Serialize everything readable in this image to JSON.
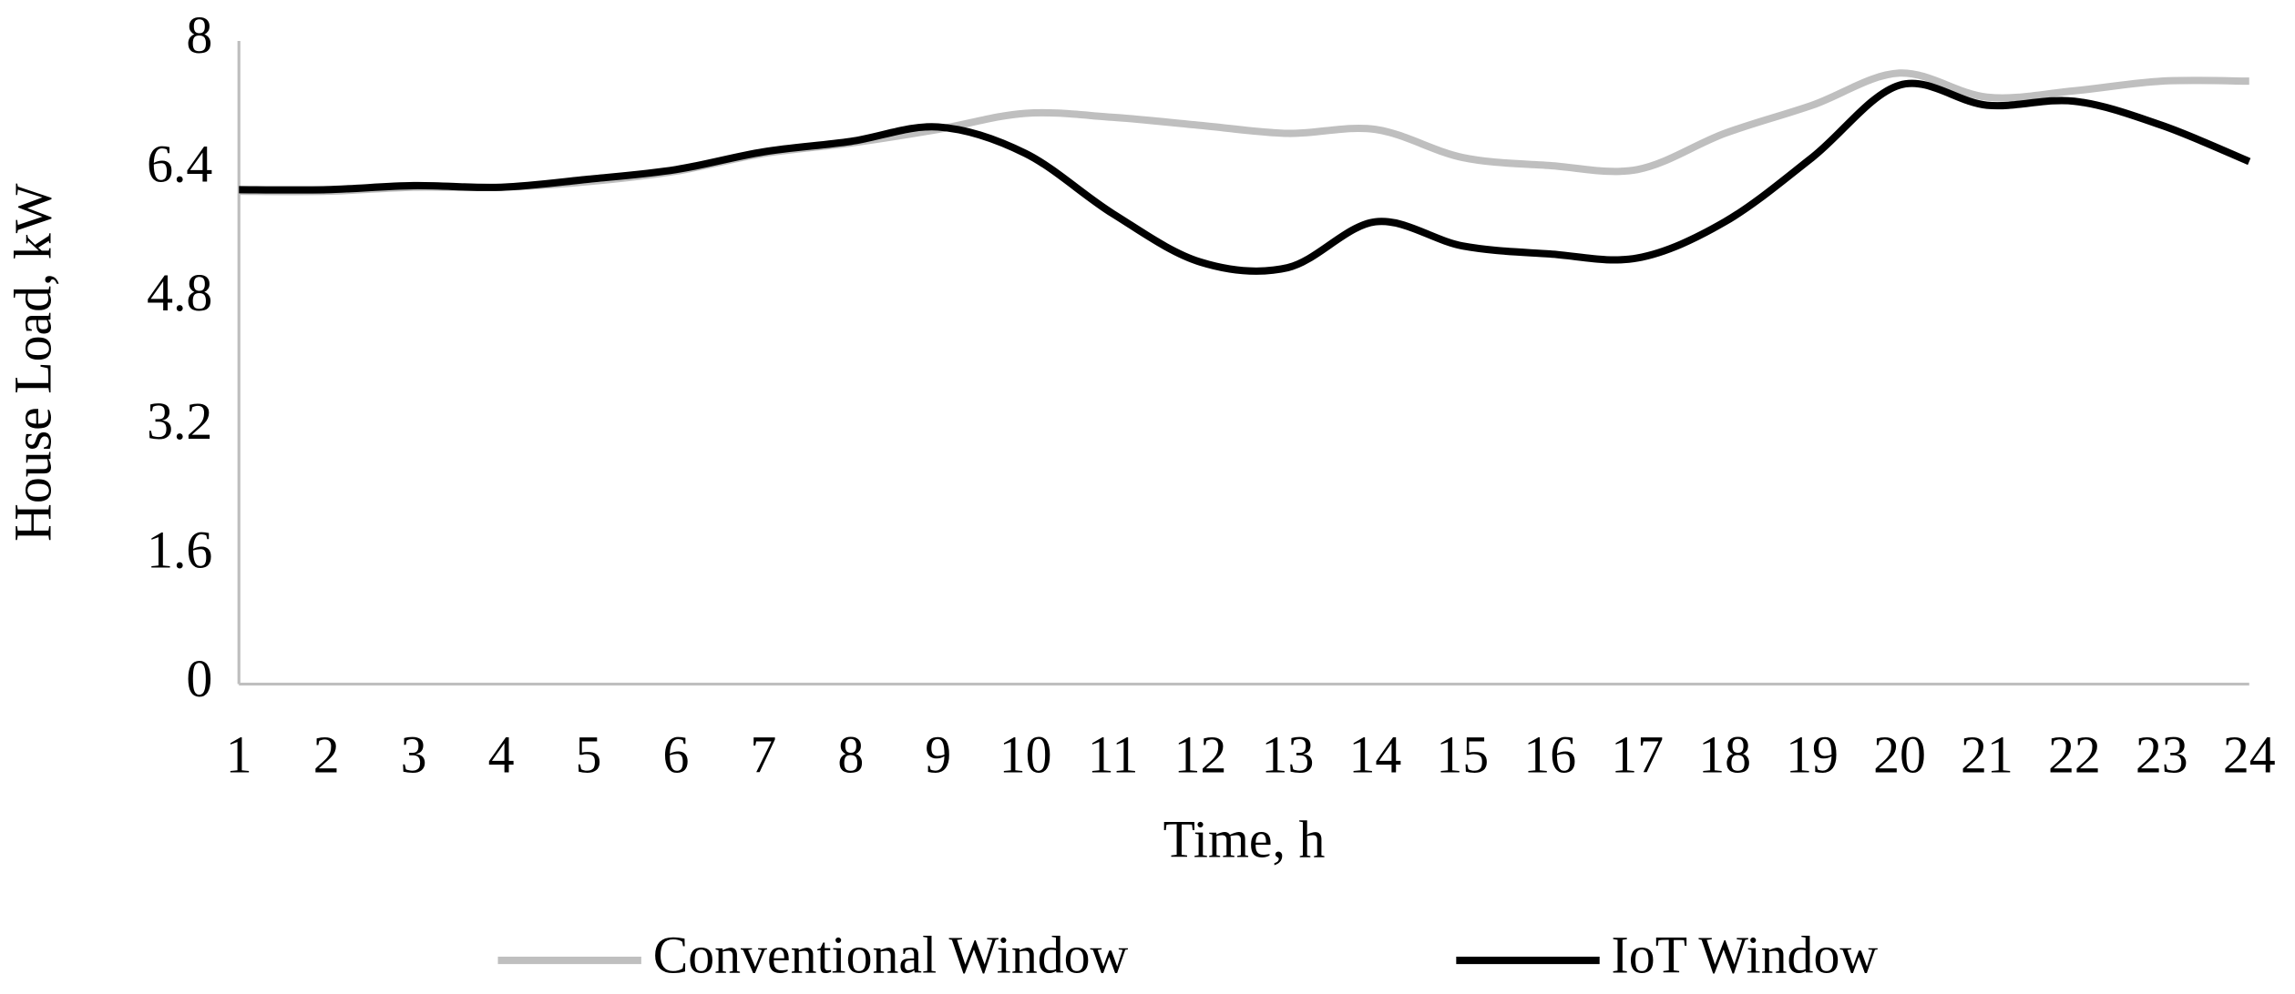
{
  "chart_data": {
    "type": "line",
    "x_label": "Time, h",
    "y_label": "House Load, kW",
    "x": [
      1,
      2,
      3,
      4,
      5,
      6,
      7,
      8,
      9,
      10,
      11,
      12,
      13,
      14,
      15,
      16,
      17,
      18,
      19,
      20,
      21,
      22,
      23,
      24
    ],
    "xlim": [
      1,
      24
    ],
    "xticks": [
      1,
      2,
      3,
      4,
      5,
      6,
      7,
      8,
      9,
      10,
      11,
      12,
      13,
      14,
      15,
      16,
      17,
      18,
      19,
      20,
      21,
      22,
      23,
      24
    ],
    "ylim": [
      0,
      8
    ],
    "yticks": [
      0,
      1.6,
      3.2,
      4.8,
      6.4,
      8
    ],
    "grid": false,
    "legend": "bottom",
    "series": [
      {
        "name": "Conventional Window",
        "color": "#bfbfbf",
        "values": [
          6.13,
          6.13,
          6.18,
          6.18,
          6.25,
          6.38,
          6.6,
          6.73,
          6.9,
          7.1,
          7.05,
          6.95,
          6.85,
          6.9,
          6.55,
          6.45,
          6.4,
          6.85,
          7.2,
          7.6,
          7.3,
          7.38,
          7.5,
          7.5
        ]
      },
      {
        "name": "IoT Window",
        "color": "#000000",
        "values": [
          6.15,
          6.15,
          6.2,
          6.18,
          6.28,
          6.4,
          6.62,
          6.75,
          6.93,
          6.6,
          5.85,
          5.25,
          5.18,
          5.75,
          5.45,
          5.35,
          5.3,
          5.75,
          6.55,
          7.45,
          7.2,
          7.25,
          6.95,
          6.5
        ]
      }
    ]
  }
}
